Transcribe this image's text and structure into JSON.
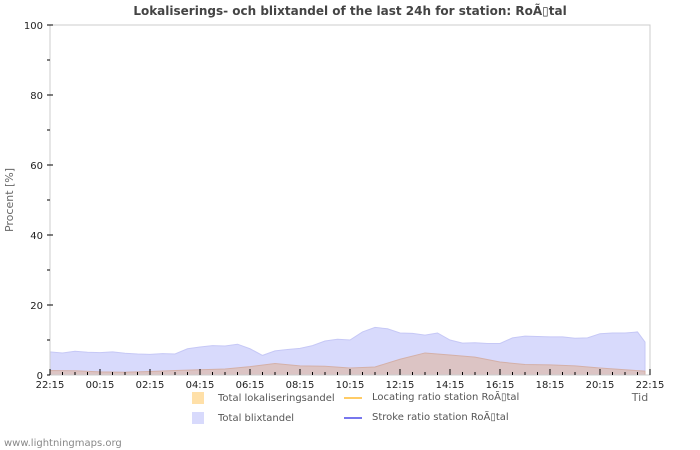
{
  "title": "Lokaliserings- och blixtandel of the last 24h for station: RoÃ▯tal",
  "footer": "www.lightningmaps.org",
  "axes": {
    "y_title": "Procent   [%]",
    "x_title": "Tid",
    "y_ticks": [
      "0",
      "20",
      "40",
      "60",
      "80",
      "100"
    ],
    "x_ticks": [
      "22:15",
      "00:15",
      "02:15",
      "04:15",
      "06:15",
      "08:15",
      "10:15",
      "12:15",
      "14:15",
      "16:15",
      "18:15",
      "20:15",
      "22:15"
    ]
  },
  "legend": {
    "items": [
      {
        "label": "Total lokaliseringsandel",
        "color": "#ffe0a8",
        "kind": "area"
      },
      {
        "label": "Locating ratio station RoÃ▯tal",
        "color": "#ffcc66",
        "kind": "line"
      },
      {
        "label": "Total blixtandel",
        "color": "#d8dafc",
        "kind": "area"
      },
      {
        "label": "Stroke ratio station RoÃ▯tal",
        "color": "#7777ee",
        "kind": "line"
      }
    ]
  },
  "colors": {
    "blixt_area": "#d8dafc",
    "blixt_edge": "#c6c8f6",
    "lokal_area": "#dcc4c4",
    "lokal_edge": "#d4b0a8",
    "grid": "#cccccc",
    "axis": "#cccccc"
  },
  "chart_data": {
    "type": "area",
    "title": "Lokaliserings- och blixtandel of the last 24h for station: RoÃ▯tal",
    "xlabel": "Tid",
    "ylabel": "Procent [%]",
    "ylim": [
      0,
      100
    ],
    "x_range_hours": [
      0,
      24
    ],
    "categories": [
      "22:15",
      "00:15",
      "02:15",
      "04:15",
      "06:15",
      "08:15",
      "10:15",
      "12:15",
      "14:15",
      "16:15",
      "18:15",
      "20:15",
      "22:15"
    ],
    "legend_position": "bottom",
    "grid": false,
    "series": [
      {
        "name": "Total blixtandel",
        "x_hours": [
          0,
          0.5,
          1,
          1.5,
          2,
          2.5,
          3,
          3.5,
          4,
          4.5,
          5,
          5.5,
          6,
          6.5,
          7,
          7.5,
          8,
          8.5,
          9,
          9.5,
          10,
          10.5,
          11,
          11.5,
          12,
          12.5,
          13,
          13.5,
          14,
          14.5,
          15,
          15.5,
          16,
          16.5,
          17,
          17.5,
          18,
          18.5,
          19,
          19.5,
          20,
          20.5,
          21,
          21.5,
          22,
          22.5,
          23,
          23.5,
          23.8
        ],
        "values": [
          6.6,
          6.3,
          6.8,
          6.5,
          6.4,
          6.6,
          6.2,
          6.0,
          5.9,
          6.1,
          6.0,
          7.5,
          8.0,
          8.4,
          8.3,
          8.8,
          7.5,
          5.6,
          6.9,
          7.3,
          7.6,
          8.4,
          9.7,
          10.2,
          10.0,
          12.3,
          13.6,
          13.2,
          12.0,
          11.9,
          11.4,
          12.0,
          10.0,
          9.1,
          9.2,
          9.0,
          9.0,
          10.6,
          11.1,
          11.0,
          10.9,
          10.9,
          10.5,
          10.6,
          11.8,
          12.0,
          12.0,
          12.3,
          9.4
        ],
        "note": "x_hours measured from 22:15; final point at right edge"
      },
      {
        "name": "Total lokaliseringsandel",
        "values_hourly": [
          1.3,
          1.2,
          0.9,
          0.8,
          1.0,
          1.3,
          1.5,
          1.7,
          2.4,
          3.3,
          2.6,
          2.5,
          2.0,
          2.3,
          4.5,
          6.3,
          5.7,
          5.1,
          3.7,
          3.0,
          2.9,
          2.6,
          2.0,
          1.5,
          1.1
        ],
        "x_hours": [
          0,
          1,
          2,
          3,
          4,
          5,
          6,
          7,
          8,
          9,
          10,
          11,
          12,
          13,
          14,
          15,
          16,
          17,
          18,
          19,
          20,
          21,
          22,
          23,
          24
        ]
      }
    ]
  }
}
